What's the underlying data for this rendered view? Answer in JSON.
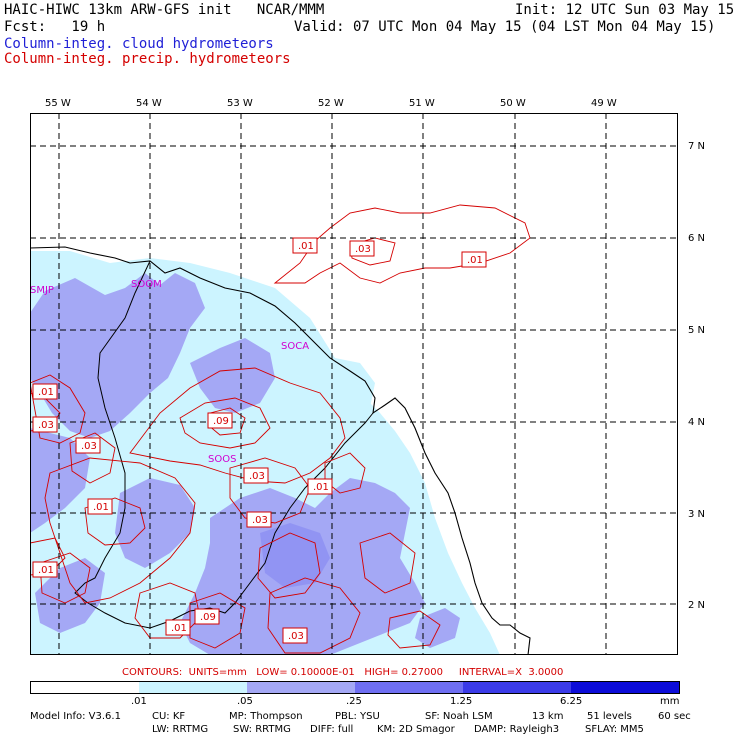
{
  "header": {
    "line1_left": "HAIC-HIWC 13km ARW-GFS init   NCAR/MMM",
    "line1_right": "Init: 12 UTC Sun 03 May 15",
    "line2_left": "Fcst:   19 h",
    "line2_right": "Valid: 07 UTC Mon 04 May 15 (04 LST Mon 04 May 15)",
    "legend_cloud": "Column-integ. cloud hydrometeors",
    "legend_precip": "Column-integ. precip. hydrometeors"
  },
  "map": {
    "lon_labels": [
      "55 W",
      "54 W",
      "53 W",
      "52 W",
      "51 W",
      "50 W",
      "49 W"
    ],
    "lat_labels": [
      "7 N",
      "6 N",
      "5 N",
      "4 N",
      "3 N",
      "2 N"
    ],
    "stations": [
      "SMJP",
      "SOOM",
      "SOCA",
      "SOOS"
    ],
    "contour_labels": [
      ".01",
      ".03",
      ".01",
      ".01",
      ".03",
      ".09",
      ".03",
      ".01",
      ".01",
      ".03",
      ".01",
      ".09",
      ".01",
      ".03",
      ".03"
    ]
  },
  "colors": {
    "shade_01": "#ccf4ff",
    "shade_05": "#a4a8f5",
    "shade_25": "#6f6ff2",
    "shade_125": "#3b3be8",
    "shade_625": "#0c0cd8",
    "contour": "#d40000",
    "station": "#d000d0"
  },
  "contours_line": {
    "label": "CONTOURS:  UNITS=mm   LOW= 0.10000E-01   HIGH= 0.27000     INTERVAL=X  3.0000"
  },
  "colorbar": {
    "ticks": [
      ".01",
      ".05",
      ".25",
      "1.25",
      "6.25"
    ],
    "units": "mm"
  },
  "footer": {
    "line1": [
      "Model Info: V3.6.1",
      "CU: KF",
      "MP: Thompson",
      "PBL: YSU",
      "SF: Noah LSM",
      "13 km",
      "51 levels",
      "60 sec"
    ],
    "line2": [
      "LW: RRTMG",
      "SW: RRTMG",
      "DIFF: full",
      "KM: 2D Smagor",
      "DAMP: Rayleigh3",
      "SFLAY: MM5"
    ]
  }
}
